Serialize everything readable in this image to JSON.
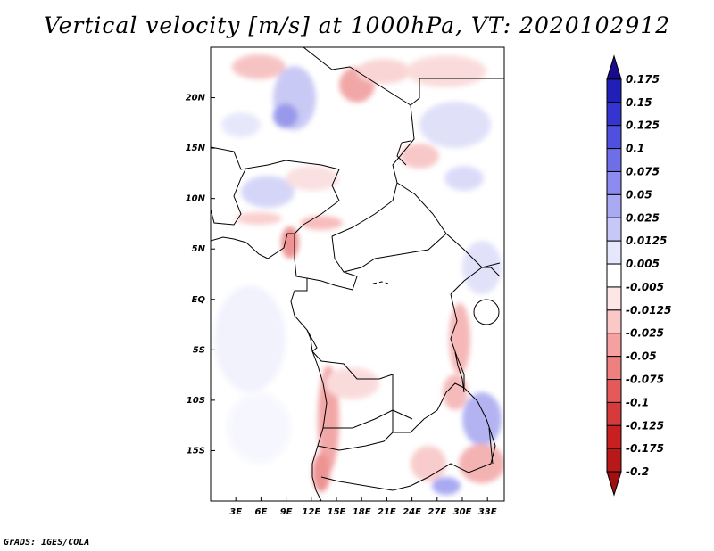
{
  "title": "Vertical velocity [m/s] at 1000hPa, VT: 2020102912",
  "credit": "GrADS: IGES/COLA",
  "map": {
    "lon_range": [
      0,
      35
    ],
    "lat_range": [
      -20,
      25
    ],
    "lat_ticks": [
      {
        "value": 20,
        "label": "20N"
      },
      {
        "value": 15,
        "label": "15N"
      },
      {
        "value": 10,
        "label": "10N"
      },
      {
        "value": 5,
        "label": "5N"
      },
      {
        "value": 0,
        "label": "EQ"
      },
      {
        "value": -5,
        "label": "5S"
      },
      {
        "value": -10,
        "label": "10S"
      },
      {
        "value": -15,
        "label": "15S"
      }
    ],
    "lon_ticks": [
      {
        "value": 3,
        "label": "3E"
      },
      {
        "value": 6,
        "label": "6E"
      },
      {
        "value": 9,
        "label": "9E"
      },
      {
        "value": 12,
        "label": "12E"
      },
      {
        "value": 15,
        "label": "15E"
      },
      {
        "value": 18,
        "label": "18E"
      },
      {
        "value": 21,
        "label": "21E"
      },
      {
        "value": 24,
        "label": "24E"
      },
      {
        "value": 27,
        "label": "27E"
      },
      {
        "value": 30,
        "label": "30E"
      },
      {
        "value": 33,
        "label": "33E"
      }
    ]
  },
  "colorbar": {
    "colors": [
      "#1a0a8c",
      "#2020b8",
      "#3434d0",
      "#5050e0",
      "#6e6ee8",
      "#8c8cf0",
      "#aaaaf4",
      "#c8c8f8",
      "#e6e6fc",
      "#ffffff",
      "#fde6e6",
      "#fbc8c8",
      "#f6a0a0",
      "#ee8080",
      "#e45a5a",
      "#d63a3a",
      "#c82020",
      "#b81818",
      "#a01010"
    ],
    "labels": [
      "0.175",
      "0.15",
      "0.125",
      "0.1",
      "0.075",
      "0.05",
      "0.025",
      "0.0125",
      "0.005",
      "-0.005",
      "-0.0125",
      "-0.025",
      "-0.05",
      "-0.075",
      "-0.1",
      "-0.125",
      "-0.175",
      "-0.2"
    ]
  }
}
